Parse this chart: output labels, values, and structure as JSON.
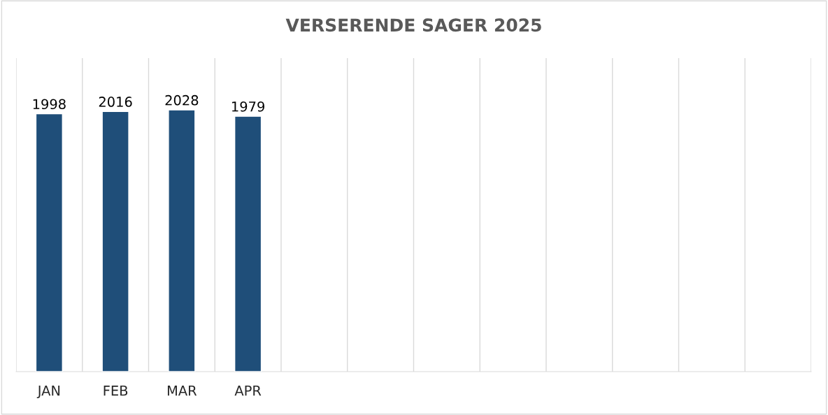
{
  "chart_data": {
    "type": "bar",
    "title": "VERSERENDE SAGER 2025",
    "categories": [
      "JAN",
      "FEB",
      "MAR",
      "APR",
      null,
      null,
      null,
      null,
      null,
      null,
      null,
      null
    ],
    "series": [
      {
        "color": "#1f4e79",
        "values": [
          1998,
          2016,
          2028,
          1979,
          null,
          null,
          null,
          null,
          null,
          null,
          null,
          null
        ]
      }
    ],
    "ylim": [
      0,
      2430
    ],
    "tick_labels": "x",
    "grid": "x",
    "data_labels": true
  }
}
